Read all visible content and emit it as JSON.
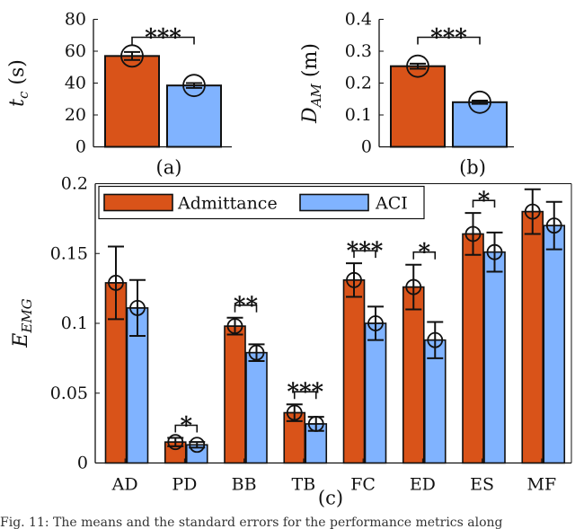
{
  "colors": {
    "admittance": "#d95319",
    "aci": "#80b3ff",
    "ink": "#111111"
  },
  "chart_data": [
    {
      "id": "a",
      "type": "bar",
      "sublabel": "(a)",
      "ylabel": "t",
      "ylabel_sub": "c",
      "ylabel_unit": "(s)",
      "ylim": [
        0,
        80
      ],
      "yticks": [
        "0",
        "20",
        "40",
        "60",
        "80"
      ],
      "ytick_values": [
        0,
        20,
        40,
        60,
        80
      ],
      "series": [
        {
          "name": "Admittance",
          "values": [
            57
          ],
          "se": [
            2.5
          ]
        },
        {
          "name": "ACI",
          "values": [
            38.5
          ],
          "se": [
            1.5
          ]
        }
      ],
      "significance": "***"
    },
    {
      "id": "b",
      "type": "bar",
      "sublabel": "(b)",
      "ylabel": "D",
      "ylabel_sub": "AM",
      "ylabel_unit": "(m)",
      "ylim": [
        0,
        0.4
      ],
      "yticks": [
        "0",
        "0.1",
        "0.2",
        "0.3",
        "0.4"
      ],
      "ytick_values": [
        0,
        0.1,
        0.2,
        0.3,
        0.4
      ],
      "series": [
        {
          "name": "Admittance",
          "values": [
            0.253
          ],
          "se": [
            0.008
          ]
        },
        {
          "name": "ACI",
          "values": [
            0.14
          ],
          "se": [
            0.005
          ]
        }
      ],
      "significance": "***"
    },
    {
      "id": "c",
      "type": "bar",
      "sublabel": "(c)",
      "ylabel": "E",
      "ylabel_sub": "EMG",
      "ylim": [
        0,
        0.2
      ],
      "yticks": [
        "0",
        "0.05",
        "0.1",
        "0.15",
        "0.2"
      ],
      "ytick_values": [
        0,
        0.05,
        0.1,
        0.15,
        0.2
      ],
      "categories": [
        "AD",
        "PD",
        "BB",
        "TB",
        "FC",
        "ED",
        "ES",
        "MF"
      ],
      "series": [
        {
          "name": "Admittance",
          "values": [
            0.129,
            0.015,
            0.098,
            0.036,
            0.131,
            0.126,
            0.164,
            0.18
          ],
          "se": [
            0.026,
            0.003,
            0.006,
            0.006,
            0.012,
            0.016,
            0.015,
            0.016
          ]
        },
        {
          "name": "ACI",
          "values": [
            0.111,
            0.013,
            0.079,
            0.028,
            0.1,
            0.088,
            0.151,
            0.17
          ],
          "se": [
            0.02,
            0.002,
            0.006,
            0.005,
            0.012,
            0.013,
            0.014,
            0.017
          ]
        }
      ],
      "significance": [
        "",
        "*",
        "**",
        "***",
        "***",
        "*",
        "*",
        ""
      ],
      "legend": [
        "Admittance",
        "ACI"
      ],
      "legend_position": "top-left"
    }
  ],
  "caption": "Fig. 11: The means and the standard errors for the performance metrics along"
}
